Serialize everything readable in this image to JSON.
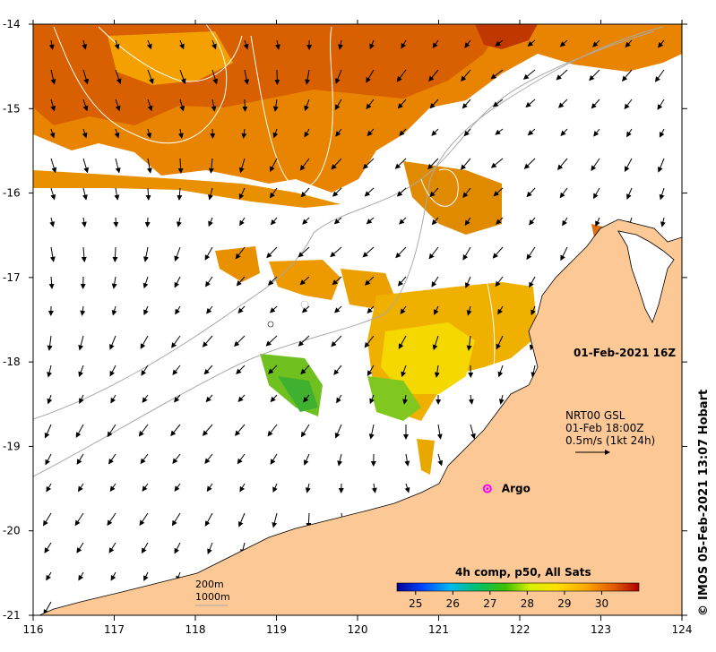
{
  "map": {
    "timestamp": "01-Feb-2021 16Z",
    "current_source": "NRT00 GSL",
    "current_time": "01-Feb 18:00Z",
    "scale_label": "0.5m/s (1kt 24h)",
    "argo_label": "Argo",
    "colorbar_title": "4h comp, p50, All Sats",
    "credit": "IMOS 05-Feb-2021 13:07 Hobart",
    "credit_symbol": "©",
    "isobaths": [
      "200m",
      "1000m"
    ],
    "colors": {
      "land": "#fcc896",
      "isobath": "#aaaaaa",
      "argo": "#ff00ff"
    }
  },
  "chart_data": {
    "type": "heatmap",
    "title": "4h comp, p50, All Sats",
    "x_ticks": [
      "116",
      "117",
      "118",
      "119",
      "120",
      "121",
      "122",
      "123",
      "124"
    ],
    "y_ticks": [
      "-14",
      "-15",
      "-16",
      "-17",
      "-18",
      "-19",
      "-20",
      "-21"
    ],
    "xlim": [
      116,
      124
    ],
    "ylim": [
      -21,
      -14
    ],
    "colorbar": {
      "ticks": [
        "25",
        "26",
        "27",
        "28",
        "29",
        "30"
      ],
      "range": [
        24.5,
        31.0
      ]
    },
    "argo_point": {
      "lon": 121.6,
      "lat": -19.5
    }
  }
}
